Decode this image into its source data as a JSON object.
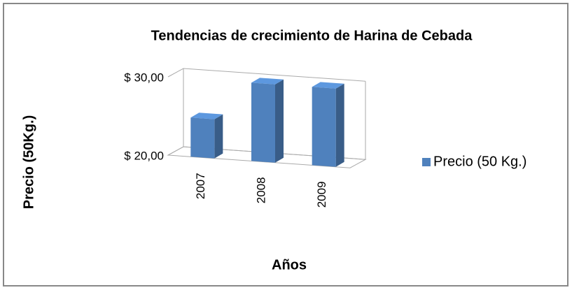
{
  "chart_data": {
    "type": "bar3d",
    "title": "Tendencias de crecimiento de Harina de Cebada",
    "x_label": "Años",
    "y_label": "Precio (50Kg.)",
    "categories": [
      "2007",
      "2008",
      "2009"
    ],
    "series": [
      {
        "name": "Precio (50 Kg.)",
        "color": "#4f81bd",
        "values": [
          25,
          30,
          30
        ]
      }
    ],
    "ylim": [
      20,
      30
    ],
    "yticks": [
      {
        "value": 20,
        "label": "$ 20,00"
      },
      {
        "value": 30,
        "label": "$ 30,00"
      }
    ],
    "grid": true,
    "legend": "right"
  }
}
